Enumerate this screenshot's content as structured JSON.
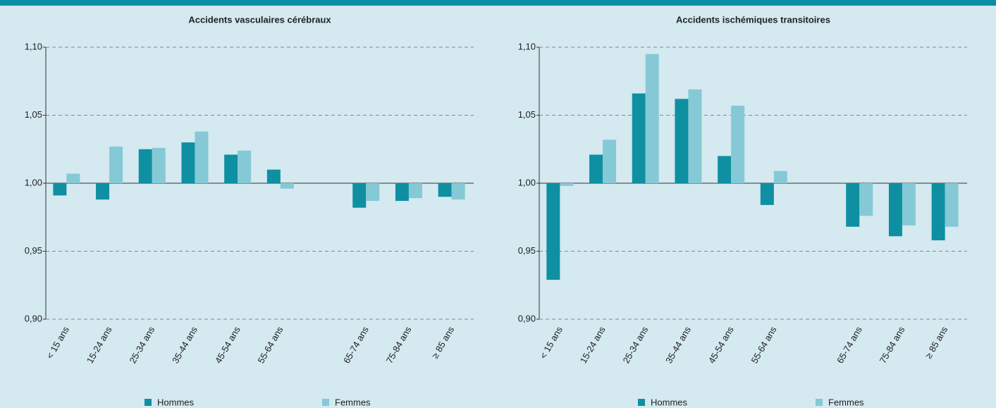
{
  "chart_data": [
    {
      "type": "bar",
      "title": "Accidents vasculaires cérébraux",
      "categories": [
        "< 15 ans",
        "15-24 ans",
        "25-34 ans",
        "35-44 ans",
        "45-54 ans",
        "55-64 ans",
        null,
        "65-74 ans",
        "75-84 ans",
        "≥ 85 ans"
      ],
      "series": [
        {
          "name": "Hommes",
          "color": "#0f8fa2",
          "values": [
            0.991,
            0.988,
            1.025,
            1.03,
            1.021,
            1.01,
            null,
            0.982,
            0.987,
            0.99
          ]
        },
        {
          "name": "Femmes",
          "color": "#86c9d6",
          "values": [
            1.007,
            1.027,
            1.026,
            1.038,
            1.024,
            0.996,
            null,
            0.987,
            0.989,
            0.988
          ]
        }
      ],
      "ylim": [
        0.9,
        1.1
      ],
      "yticks": [
        {
          "value": 0.9,
          "label": "0,90"
        },
        {
          "value": 0.95,
          "label": "0,95"
        },
        {
          "value": 1,
          "label": "1,00"
        },
        {
          "value": 1.05,
          "label": "1,05"
        },
        {
          "value": 1.1,
          "label": "1,10"
        }
      ],
      "bar_base": 1,
      "grid": true
    },
    {
      "type": "bar",
      "title": "Accidents ischémiques transitoires",
      "categories": [
        "< 15 ans",
        "15-24 ans",
        "25-34 ans",
        "35-44 ans",
        "45-54 ans",
        "55-64 ans",
        null,
        "65-74 ans",
        "75-84 ans",
        "≥ 85 ans"
      ],
      "series": [
        {
          "name": "Hommes",
          "color": "#0f8fa2",
          "values": [
            0.929,
            1.021,
            1.066,
            1.062,
            1.02,
            0.984,
            null,
            0.968,
            0.961,
            0.958
          ]
        },
        {
          "name": "Femmes",
          "color": "#86c9d6",
          "values": [
            0.998,
            1.032,
            1.095,
            1.069,
            1.057,
            1.009,
            null,
            0.976,
            0.969,
            0.968
          ]
        }
      ],
      "ylim": [
        0.9,
        1.1
      ],
      "yticks": [
        {
          "value": 0.9,
          "label": "0,90"
        },
        {
          "value": 0.95,
          "label": "0,95"
        },
        {
          "value": 1,
          "label": "1,00"
        },
        {
          "value": 1.05,
          "label": "1,05"
        },
        {
          "value": 1.1,
          "label": "1,10"
        }
      ],
      "bar_base": 1,
      "grid": true
    }
  ]
}
